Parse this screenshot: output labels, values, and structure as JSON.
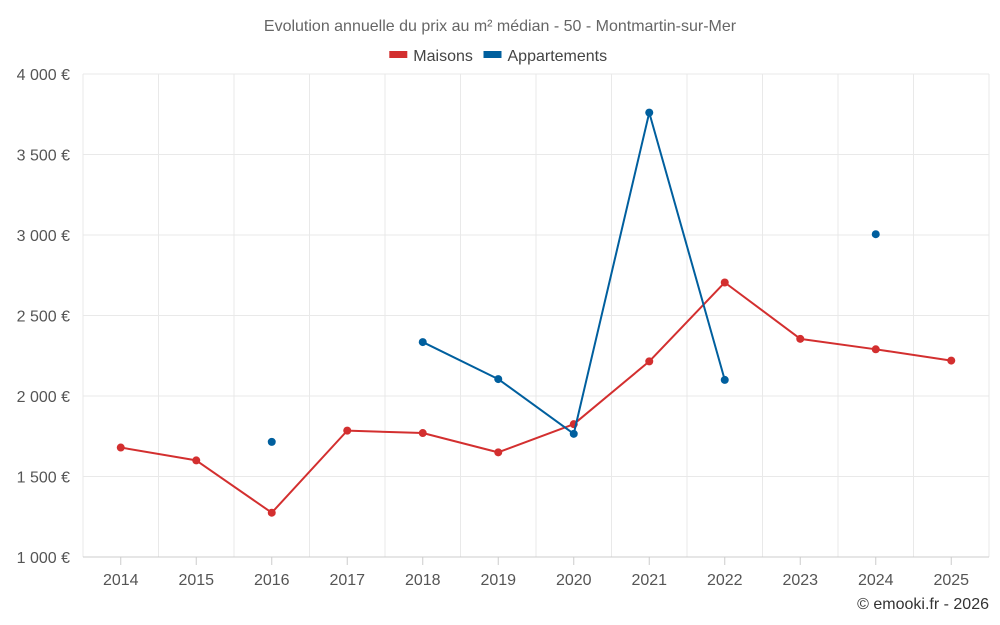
{
  "chart_data": {
    "type": "line",
    "title": "Evolution annuelle du prix au m² médian - 50 - Montmartin-sur-Mer",
    "categories": [
      "2014",
      "2015",
      "2016",
      "2017",
      "2018",
      "2019",
      "2020",
      "2021",
      "2022",
      "2023",
      "2024",
      "2025"
    ],
    "series": [
      {
        "name": "Maisons",
        "color": "#d32f2f",
        "values": [
          1680,
          1600,
          1275,
          1785,
          1770,
          1650,
          1825,
          2215,
          2705,
          2355,
          2290,
          2220
        ]
      },
      {
        "name": "Appartements",
        "color": "#005f9e",
        "values": [
          null,
          null,
          1715,
          null,
          2335,
          2105,
          1765,
          3760,
          2100,
          null,
          3005,
          null
        ]
      }
    ],
    "ylim": [
      1000,
      4000
    ],
    "yticks": [
      1000,
      1500,
      2000,
      2500,
      3000,
      3500,
      4000
    ],
    "ytick_labels": [
      "1 000 €",
      "1 500 €",
      "2 000 €",
      "2 500 €",
      "3 000 €",
      "3 500 €",
      "4 000 €"
    ],
    "xlabel": "",
    "ylabel": "",
    "legend": "top-center",
    "grid": true
  },
  "credit": "© emooki.fr - 2026"
}
